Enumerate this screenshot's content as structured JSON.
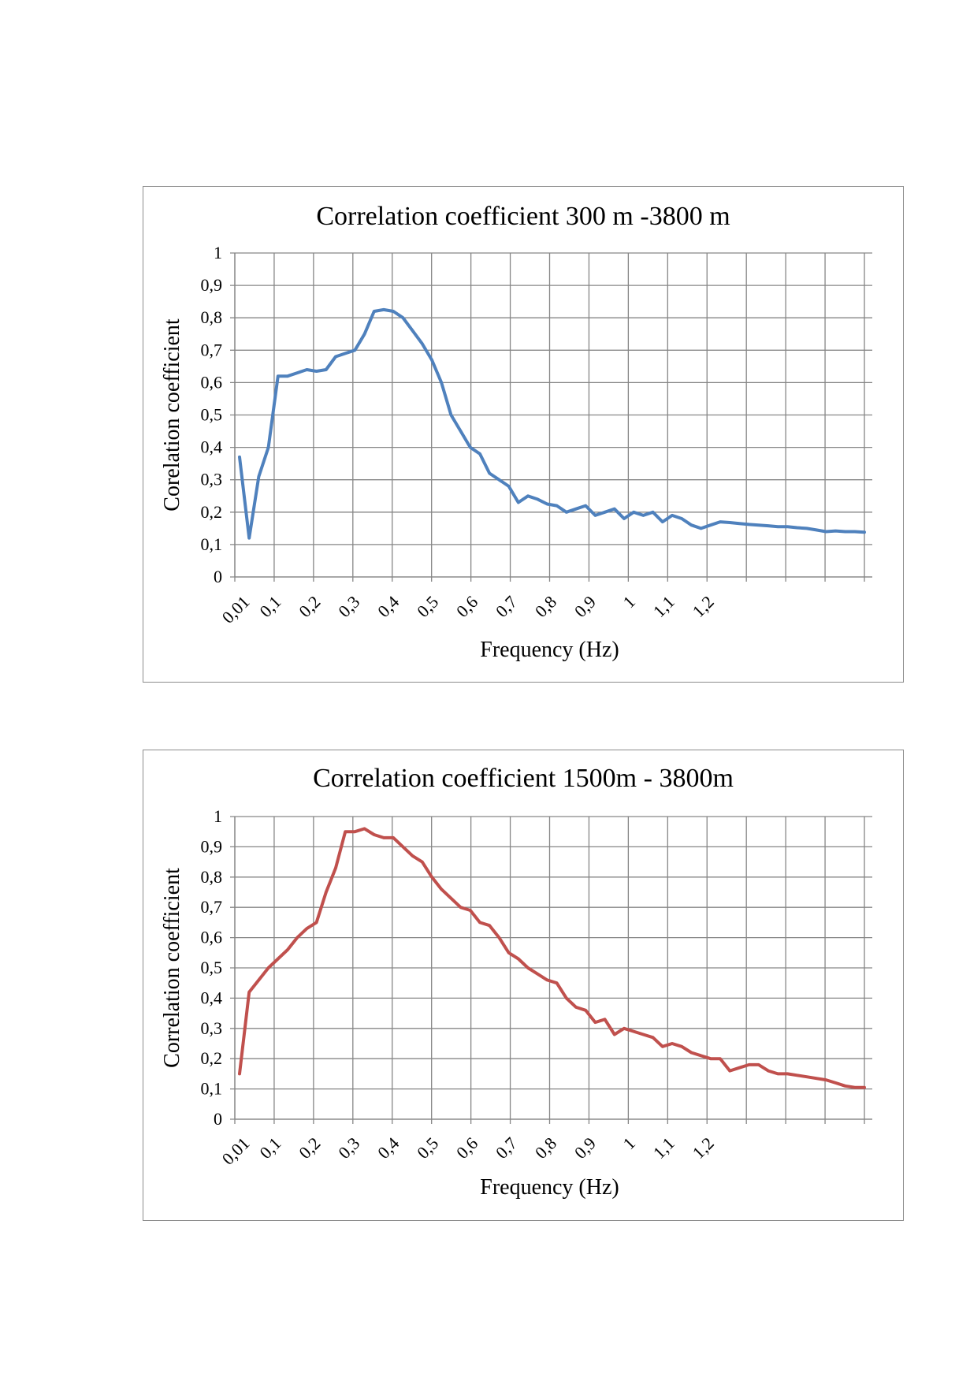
{
  "chart_data": [
    {
      "type": "line",
      "title": "Correlation coefficient 300 m -3800 m",
      "xlabel": "Frequency (Hz)",
      "ylabel": "Corelation coefficient",
      "color": "#4f81bd",
      "ylim": [
        0,
        1
      ],
      "y_ticks": [
        "0",
        "0,1",
        "0,2",
        "0,3",
        "0,4",
        "0,5",
        "0,6",
        "0,7",
        "0,8",
        "0,9",
        "1"
      ],
      "x_ticks": [
        "0,01",
        "0,1",
        "0,2",
        "0,3",
        "0,4",
        "0,5",
        "0,6",
        "0,7",
        "0,8",
        "0,9",
        "1",
        "1,1",
        "1,2"
      ],
      "grid": true,
      "series": [
        {
          "name": "Correlation coefficient",
          "x": [
            0.01,
            0.035,
            0.06,
            0.085,
            0.11,
            0.135,
            0.16,
            0.185,
            0.21,
            0.235,
            0.26,
            0.285,
            0.31,
            0.335,
            0.36,
            0.385,
            0.41,
            0.435,
            0.46,
            0.485,
            0.51,
            0.535,
            0.56,
            0.585,
            0.61,
            0.635,
            0.66,
            0.685,
            0.71,
            0.735,
            0.76,
            0.785,
            0.81,
            0.835,
            0.86,
            0.885,
            0.91,
            0.935,
            0.96,
            0.985,
            1.01,
            1.035,
            1.06,
            1.085,
            1.11,
            1.135,
            1.16,
            1.185,
            1.21,
            1.235,
            1.26,
            1.285,
            1.31,
            1.335,
            1.36,
            1.385,
            1.41,
            1.435,
            1.46,
            1.485,
            1.51,
            1.535,
            1.56,
            1.585,
            1.61,
            1.635
          ],
          "values": [
            0.37,
            0.12,
            0.31,
            0.4,
            0.62,
            0.62,
            0.63,
            0.64,
            0.635,
            0.64,
            0.68,
            0.69,
            0.7,
            0.75,
            0.82,
            0.825,
            0.82,
            0.8,
            0.76,
            0.72,
            0.67,
            0.6,
            0.5,
            0.45,
            0.4,
            0.38,
            0.32,
            0.3,
            0.28,
            0.23,
            0.25,
            0.24,
            0.225,
            0.22,
            0.2,
            0.21,
            0.22,
            0.19,
            0.2,
            0.21,
            0.18,
            0.2,
            0.19,
            0.2,
            0.17,
            0.19,
            0.18,
            0.16,
            0.15,
            0.16,
            0.17,
            0.168,
            0.165,
            0.162,
            0.16,
            0.158,
            0.155,
            0.155,
            0.152,
            0.15,
            0.145,
            0.14,
            0.142,
            0.14,
            0.14,
            0.138
          ]
        }
      ]
    },
    {
      "type": "line",
      "title": "Correlation coefficient  1500m - 3800m",
      "xlabel": "Frequency (Hz)",
      "ylabel": "Correlation coefficient",
      "color": "#c0504d",
      "ylim": [
        0,
        1
      ],
      "y_ticks": [
        "0",
        "0,1",
        "0,2",
        "0,3",
        "0,4",
        "0,5",
        "0,6",
        "0,7",
        "0,8",
        "0,9",
        "1"
      ],
      "x_ticks": [
        "0,01",
        "0,1",
        "0,2",
        "0,3",
        "0,4",
        "0,5",
        "0,6",
        "0,7",
        "0,8",
        "0,9",
        "1",
        "1,1",
        "1,2"
      ],
      "grid": true,
      "series": [
        {
          "name": "Correlation coefficient",
          "x": [
            0.01,
            0.035,
            0.06,
            0.085,
            0.11,
            0.135,
            0.16,
            0.185,
            0.21,
            0.235,
            0.26,
            0.285,
            0.31,
            0.335,
            0.36,
            0.385,
            0.41,
            0.435,
            0.46,
            0.485,
            0.51,
            0.535,
            0.56,
            0.585,
            0.61,
            0.635,
            0.66,
            0.685,
            0.71,
            0.735,
            0.76,
            0.785,
            0.81,
            0.835,
            0.86,
            0.885,
            0.91,
            0.935,
            0.96,
            0.985,
            1.01,
            1.035,
            1.06,
            1.085,
            1.11,
            1.135,
            1.16,
            1.185,
            1.21,
            1.235,
            1.26,
            1.285,
            1.31,
            1.335,
            1.36,
            1.385,
            1.41,
            1.435,
            1.46,
            1.485,
            1.51,
            1.535,
            1.56,
            1.585,
            1.61,
            1.635
          ],
          "values": [
            0.15,
            0.42,
            0.46,
            0.5,
            0.53,
            0.56,
            0.6,
            0.63,
            0.65,
            0.75,
            0.83,
            0.95,
            0.95,
            0.96,
            0.94,
            0.93,
            0.93,
            0.9,
            0.87,
            0.85,
            0.8,
            0.76,
            0.73,
            0.7,
            0.69,
            0.65,
            0.64,
            0.6,
            0.55,
            0.53,
            0.5,
            0.48,
            0.46,
            0.45,
            0.4,
            0.37,
            0.36,
            0.32,
            0.33,
            0.28,
            0.3,
            0.29,
            0.28,
            0.27,
            0.24,
            0.25,
            0.24,
            0.22,
            0.21,
            0.2,
            0.2,
            0.16,
            0.17,
            0.18,
            0.18,
            0.16,
            0.15,
            0.15,
            0.145,
            0.14,
            0.135,
            0.13,
            0.12,
            0.11,
            0.105,
            0.105
          ]
        }
      ]
    }
  ]
}
